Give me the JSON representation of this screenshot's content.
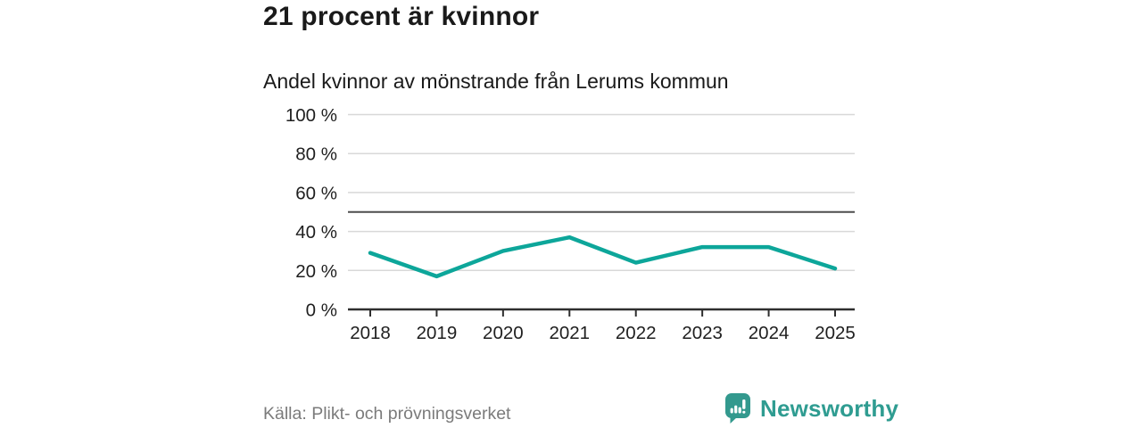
{
  "header": {
    "title": "21 procent är kvinnor",
    "subtitle": "Andel kvinnor av mönstrande från Lerums kommun"
  },
  "chart_data": {
    "type": "line",
    "title": "21 procent är kvinnor",
    "subtitle": "Andel kvinnor av mönstrande från Lerums kommun",
    "categories": [
      "2018",
      "2019",
      "2020",
      "2021",
      "2022",
      "2023",
      "2024",
      "2025"
    ],
    "series": [
      {
        "name": "Andel kvinnor av mönstrande",
        "values": [
          29,
          17,
          30,
          37,
          24,
          32,
          32,
          21
        ]
      }
    ],
    "unit": "%",
    "ylim": [
      0,
      100
    ],
    "yticks": [
      0,
      20,
      40,
      60,
      80,
      100
    ],
    "ytick_suffix": " %",
    "reference_line": 50,
    "grid": true,
    "legend": "none",
    "line_color": "#0da69a",
    "grid_color": "#d8d8d8",
    "reference_line_color": "#4d4d4d",
    "axis_color": "#2e2e2e"
  },
  "footer": {
    "source": "Källa: Plikt- och prövningsverket",
    "brand": "Newsworthy",
    "brand_color": "#2f9c91",
    "brand_icon": "speech-bubble-bar-chart-exclamation",
    "brand_icon_color": "#33998e"
  }
}
